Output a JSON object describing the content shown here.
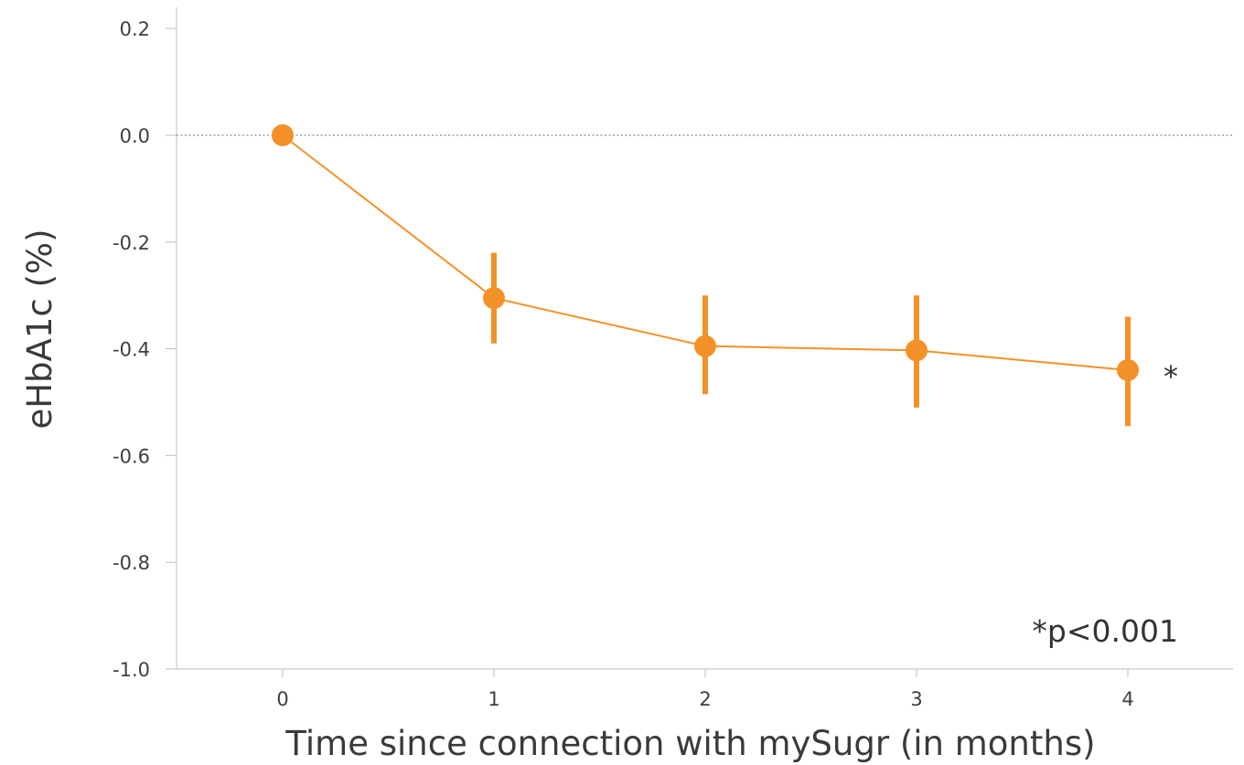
{
  "chart_data": {
    "type": "line",
    "xlabel": "Time since connection with mySugr (in months)",
    "ylabel": "eHbA1c (%)",
    "x": [
      0,
      1,
      2,
      3,
      4
    ],
    "x_tick_labels": [
      "0",
      "1",
      "2",
      "3",
      "4"
    ],
    "xlim": [
      -0.5,
      4.5
    ],
    "ylim": [
      -1.0,
      0.2
    ],
    "y_ticks": [
      0.2,
      0.0,
      -0.2,
      -0.4,
      -0.6,
      -0.8,
      -1.0
    ],
    "y_tick_labels": [
      "0.2",
      "0.0",
      "-0.2",
      "-0.4",
      "-0.6",
      "-0.8",
      "-1.0"
    ],
    "reference_line": {
      "y": 0.0,
      "style": "dotted"
    },
    "grid": false,
    "series": [
      {
        "values": [
          0.0,
          -0.305,
          -0.395,
          -0.403,
          -0.44
        ],
        "error_low": [
          null,
          -0.39,
          -0.485,
          -0.51,
          -0.545
        ],
        "error_high": [
          null,
          -0.22,
          -0.3,
          -0.3,
          -0.34
        ],
        "color": "#F39128"
      }
    ],
    "annotations": [
      {
        "text": "*",
        "x": 4,
        "y": -0.44,
        "position": "right"
      },
      {
        "text": "*p<0.001",
        "position": "bottom-right"
      }
    ]
  }
}
